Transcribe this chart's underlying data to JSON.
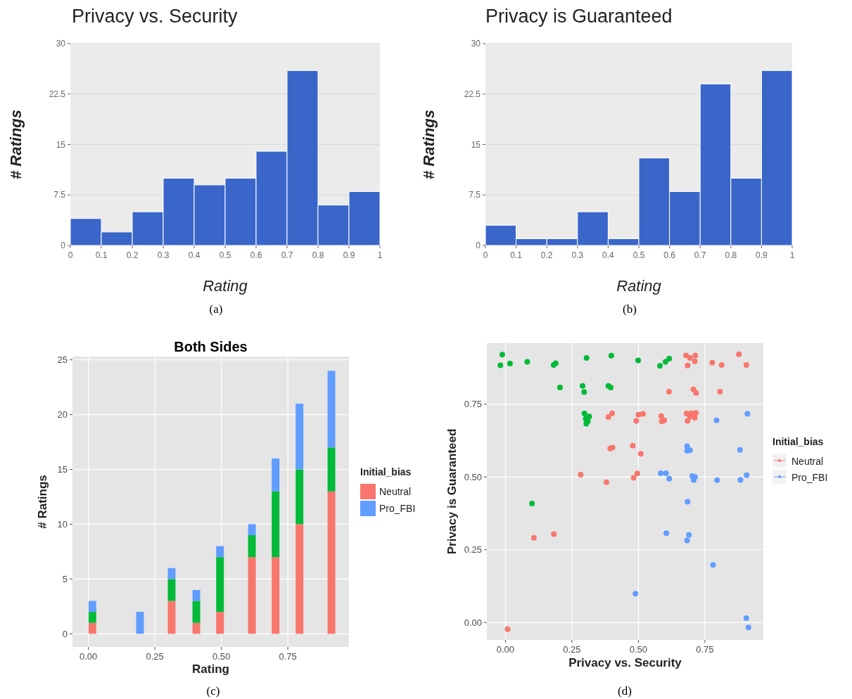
{
  "chart_data": [
    {
      "type": "histogram",
      "title": "Privacy vs. Security",
      "xlabel": "Rating",
      "ylabel": "# Ratings",
      "bins": [
        0,
        0.1,
        0.2,
        0.3,
        0.4,
        0.5,
        0.6,
        0.7,
        0.8,
        0.9,
        1
      ],
      "values": [
        4,
        2,
        5,
        10,
        9,
        10,
        14,
        26,
        6,
        8
      ],
      "color": "#3a66c9",
      "xlim": [
        0,
        1
      ],
      "ylim": [
        0,
        30
      ],
      "xticks": [
        0,
        0.1,
        0.2,
        0.3,
        0.4,
        0.5,
        0.6,
        0.7,
        0.8,
        0.9,
        1
      ],
      "yticks": [
        0,
        7.5,
        15,
        22.5,
        30
      ],
      "grid": "y",
      "annotations": [
        "(a)"
      ]
    },
    {
      "type": "histogram",
      "title": "Privacy is Guaranteed",
      "xlabel": "Rating",
      "ylabel": "# Ratings",
      "bins": [
        0,
        0.1,
        0.2,
        0.3,
        0.4,
        0.5,
        0.6,
        0.7,
        0.8,
        0.9,
        1
      ],
      "values": [
        3,
        1,
        1,
        5,
        1,
        13,
        8,
        24,
        10,
        26
      ],
      "color": "#3a66c9",
      "xlim": [
        0,
        1
      ],
      "ylim": [
        0,
        30
      ],
      "xticks": [
        0,
        0.1,
        0.2,
        0.3,
        0.4,
        0.5,
        0.6,
        0.7,
        0.8,
        0.9,
        1
      ],
      "yticks": [
        0,
        7.5,
        15,
        22.5,
        30
      ],
      "grid": "y",
      "annotations": [
        "(b)"
      ]
    },
    {
      "type": "bar",
      "stacked": true,
      "title": "Both Sides",
      "xlabel": "Rating",
      "ylabel": "# Ratings",
      "legend_title": "Initial_bias",
      "legend": "right",
      "x": [
        0.015,
        0.194,
        0.313,
        0.406,
        0.495,
        0.615,
        0.704,
        0.794,
        0.914
      ],
      "series": [
        {
          "name": "Neutral",
          "color": "#f8766d",
          "values": [
            1,
            0,
            3,
            1,
            2,
            7,
            7,
            10,
            13
          ]
        },
        {
          "color": "#00ba38",
          "values": [
            1,
            0,
            2,
            2,
            5,
            2,
            6,
            5,
            4
          ]
        },
        {
          "name": "Pro_FBI",
          "color": "#619cff",
          "values": [
            1,
            2,
            1,
            1,
            1,
            1,
            3,
            6,
            7
          ]
        }
      ],
      "xlim": [
        -0.06,
        0.98
      ],
      "ylim": [
        -1.2,
        25.3
      ],
      "xticks": [
        {
          "value": 0,
          "label": "0.00"
        },
        {
          "value": 0.25,
          "label": "0.25"
        },
        {
          "value": 0.5,
          "label": "0.50"
        },
        {
          "value": 0.75,
          "label": "0.75"
        }
      ],
      "yticks": [
        0,
        5,
        10,
        15,
        20,
        25
      ],
      "grid": true,
      "annotations": [
        "(c)"
      ]
    },
    {
      "type": "scatter",
      "xlabel": "Privacy vs. Security",
      "ylabel": "Privacy is Guaranteed",
      "legend_title": "Initial_bias",
      "legend": "right",
      "marker": "circle",
      "series": [
        {
          "name": "Neutral",
          "color": "#f8766d",
          "x": [
            0.679,
            0.714,
            0.694,
            0.712,
            0.685,
            0.778,
            0.813,
            0.878,
            0.906,
            0.615,
            0.707,
            0.717,
            0.807,
            0.401,
            0.387,
            0.5,
            0.517,
            0.492,
            0.586,
            0.597,
            0.588,
            0.681,
            0.699,
            0.716,
            0.694,
            0.712,
            0.685,
            0.394,
            0.403,
            0.479,
            0.509,
            0.283,
            0.38,
            0.496,
            0.482,
            0.107,
            0.182,
            0.008
          ],
          "values": [
            0.918,
            0.918,
            0.909,
            0.898,
            0.883,
            0.893,
            0.885,
            0.922,
            0.885,
            0.793,
            0.801,
            0.789,
            0.793,
            0.719,
            0.706,
            0.714,
            0.717,
            0.693,
            0.709,
            0.695,
            0.691,
            0.718,
            0.719,
            0.72,
            0.708,
            0.704,
            0.693,
            0.598,
            0.601,
            0.608,
            0.58,
            0.508,
            0.482,
            0.512,
            0.497,
            0.291,
            0.304,
            -0.023
          ]
        },
        {
          "color": "#00ba38",
          "x": [
            -0.012,
            -0.019,
            0.017,
            0.082,
            0.181,
            0.189,
            0.205,
            0.305,
            0.29,
            0.296,
            0.398,
            0.387,
            0.396,
            0.499,
            0.581,
            0.602,
            0.616,
            0.297,
            0.315,
            0.302,
            0.31,
            0.304,
            0.1
          ],
          "values": [
            0.921,
            0.884,
            0.89,
            0.896,
            0.885,
            0.891,
            0.808,
            0.909,
            0.813,
            0.792,
            0.917,
            0.813,
            0.808,
            0.901,
            0.882,
            0.896,
            0.907,
            0.718,
            0.708,
            0.7,
            0.692,
            0.683,
            0.409
          ]
        },
        {
          "name": "Pro_FBI",
          "color": "#619cff",
          "x": [
            0.794,
            0.91,
            0.683,
            0.694,
            0.683,
            0.882,
            0.584,
            0.604,
            0.616,
            0.703,
            0.713,
            0.708,
            0.796,
            0.884,
            0.907,
            0.685,
            0.605,
            0.69,
            0.683,
            0.781,
            0.489,
            0.906,
            0.914
          ],
          "values": [
            0.695,
            0.717,
            0.606,
            0.592,
            0.59,
            0.593,
            0.513,
            0.513,
            0.494,
            0.503,
            0.5,
            0.49,
            0.489,
            0.49,
            0.506,
            0.415,
            0.307,
            0.301,
            0.282,
            0.198,
            0.099,
            0.015,
            -0.017
          ]
        }
      ],
      "xlim": [
        -0.07,
        0.97
      ],
      "ylim": [
        -0.06,
        0.96
      ],
      "xticks": [
        {
          "value": 0,
          "label": "0.00"
        },
        {
          "value": 0.25,
          "label": "0.25"
        },
        {
          "value": 0.5,
          "label": "0.50"
        },
        {
          "value": 0.75,
          "label": "0.75"
        }
      ],
      "yticks": [
        {
          "value": 0,
          "label": "0.00"
        },
        {
          "value": 0.25,
          "label": "0.25"
        },
        {
          "value": 0.5,
          "label": "0.50"
        },
        {
          "value": 0.75,
          "label": "0.75"
        }
      ],
      "grid": true,
      "annotations": [
        "(d)"
      ]
    }
  ]
}
